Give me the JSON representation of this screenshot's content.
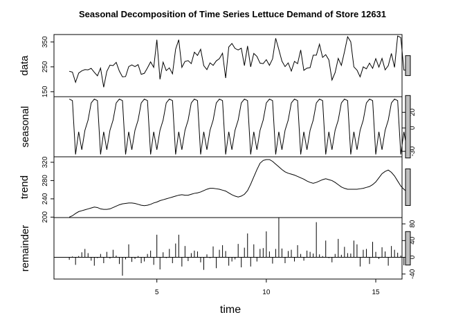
{
  "chart_data": {
    "type": "line",
    "title": "Seasonal Decomposition of Time Series Lettuce Demand of Store 12631",
    "xlabel": "time",
    "x_ticks": [
      5,
      10,
      15
    ],
    "xlim": [
      0.3,
      16.2
    ],
    "x_start": 1,
    "x_step": 0.142857,
    "panels": [
      {
        "name": "data",
        "style": "line",
        "ylim": [
          130,
          380
        ],
        "y_ticks": [
          150,
          250,
          350
        ],
        "y_tick_side": "left",
        "bar_half_range": 40,
        "values": [
          232,
          229,
          188,
          225,
          234,
          239,
          238,
          244,
          228,
          214,
          245,
          168,
          232,
          257,
          255,
          268,
          233,
          210,
          211,
          251,
          258,
          251,
          259,
          220,
          224,
          246,
          270,
          248,
          359,
          200,
          269,
          235,
          246,
          222,
          321,
          359,
          248,
          272,
          275,
          263,
          309,
          296,
          321,
          255,
          239,
          266,
          256,
          274,
          283,
          305,
          205,
          330,
          344,
          324,
          318,
          325,
          255,
          334,
          250,
          304,
          292,
          265,
          263,
          279,
          256,
          282,
          365,
          320,
          273,
          251,
          266,
          233,
          272,
          263,
          318,
          236,
          245,
          247,
          297,
          297,
          341,
          288,
          299,
          278,
          197,
          227,
          284,
          256,
          311,
          371,
          351,
          250,
          237,
          210,
          250,
          242,
          265,
          244,
          283,
          249,
          284,
          238,
          255,
          304,
          248,
          374,
          368,
          237,
          238,
          238
        ]
      },
      {
        "name": "seasonal",
        "style": "line",
        "ylim": [
          -37,
          40
        ],
        "y_ticks": [
          -30,
          0,
          20
        ],
        "y_tick_side": "right",
        "bar_half_range": 40,
        "values": [
          37,
          35,
          -34,
          -5,
          -28,
          -3,
          10,
          32,
          37,
          35,
          -34,
          -5,
          -28,
          -3,
          10,
          32,
          37,
          35,
          -34,
          -5,
          -28,
          -3,
          10,
          32,
          37,
          35,
          -34,
          -5,
          -28,
          -3,
          10,
          32,
          37,
          35,
          -34,
          -5,
          -28,
          -3,
          10,
          32,
          37,
          35,
          -34,
          -5,
          -28,
          -3,
          10,
          32,
          37,
          35,
          -34,
          -5,
          -28,
          -3,
          10,
          32,
          37,
          35,
          -34,
          -5,
          -28,
          -3,
          10,
          32,
          37,
          35,
          -34,
          -5,
          -28,
          -3,
          10,
          32,
          37,
          35,
          -34,
          -5,
          -28,
          -3,
          10,
          32,
          37,
          35,
          -34,
          -5,
          -28,
          -3,
          10,
          32,
          37,
          35,
          -34,
          -5,
          -28,
          -3,
          10,
          32,
          37,
          35,
          -34,
          -5,
          -28,
          -3,
          10,
          32,
          37,
          35,
          -34,
          -5,
          -28,
          -3
        ]
      },
      {
        "name": "trend",
        "style": "line",
        "ylim": [
          199,
          332
        ],
        "y_ticks": [
          200,
          240,
          280,
          320
        ],
        "y_tick_side": "left",
        "bar_half_range": 40,
        "values": [
          200,
          203,
          208,
          212,
          214,
          216,
          218,
          220,
          222,
          221,
          218,
          217,
          217,
          218,
          221,
          224,
          227,
          229,
          230,
          231,
          231,
          230,
          228,
          226,
          225,
          226,
          228,
          231,
          233,
          236,
          238,
          240,
          242,
          244,
          246,
          248,
          249,
          248,
          248,
          250,
          252,
          253,
          255,
          258,
          261,
          263,
          263,
          262,
          261,
          259,
          257,
          253,
          249,
          246,
          244,
          246,
          250,
          258,
          272,
          288,
          304,
          318,
          324,
          326,
          326,
          322,
          316,
          310,
          304,
          299,
          296,
          294,
          292,
          289,
          286,
          283,
          279,
          276,
          274,
          276,
          279,
          282,
          284,
          282,
          280,
          276,
          271,
          266,
          263,
          261,
          261,
          261,
          261,
          262,
          263,
          265,
          267,
          271,
          277,
          286,
          295,
          300,
          303,
          298,
          290,
          279,
          268,
          261,
          255,
          250
        ]
      },
      {
        "name": "remainder",
        "style": "spike",
        "ylim": [
          -52,
          95
        ],
        "y_ticks": [
          -40,
          0,
          40,
          80
        ],
        "y_tick_side": "right",
        "bar_half_range": 40,
        "values": [
          -6,
          2,
          -18,
          3,
          12,
          20,
          10,
          -8,
          -20,
          -2,
          8,
          -14,
          13,
          -3,
          18,
          4,
          -16,
          -44,
          -5,
          31,
          -11,
          -4,
          3,
          -14,
          -10,
          8,
          16,
          -18,
          54,
          -29,
          12,
          -2,
          20,
          -14,
          33,
          54,
          -22,
          27,
          -9,
          10,
          16,
          14,
          -12,
          -30,
          7,
          -2,
          26,
          -26,
          18,
          29,
          15,
          -20,
          -10,
          -5,
          32,
          -24,
          23,
          57,
          -22,
          31,
          -10,
          20,
          22,
          62,
          14,
          -15,
          20,
          95,
          21,
          -14,
          15,
          18,
          -10,
          29,
          8,
          -8,
          16,
          13,
          9,
          84,
          7,
          3,
          40,
          -2,
          -12,
          8,
          44,
          6,
          25,
          10,
          9,
          40,
          31,
          -22,
          18,
          20,
          -16,
          37,
          13,
          -4,
          24,
          14,
          -20,
          27,
          18,
          11,
          4,
          -19,
          16,
          -12
        ]
      }
    ]
  }
}
